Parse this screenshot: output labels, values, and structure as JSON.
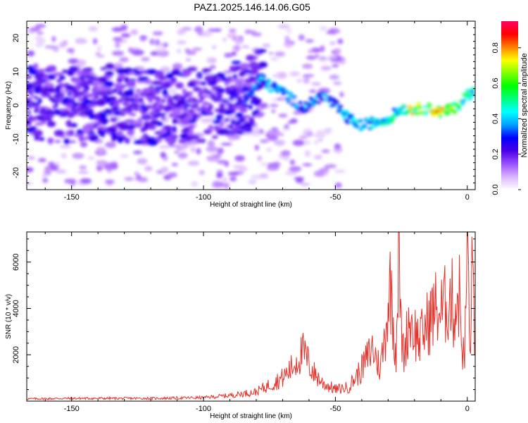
{
  "title": "PAZ1.2025.146.14.06.G05",
  "chart_data": [
    {
      "type": "heatmap",
      "xlabel": "Height of straight line (km)",
      "ylabel": "Frequency (Hz)",
      "xlim": [
        -167,
        3
      ],
      "ylim": [
        -25,
        25
      ],
      "xticks": [
        -150,
        -100,
        -50,
        0
      ],
      "yticks": [
        -20,
        -10,
        0,
        10,
        20
      ],
      "colorbar": {
        "label": "Normalized spectral amplitude",
        "range": [
          0,
          0.95
        ],
        "ticks": [
          "0.0",
          "0.2",
          "0.4",
          "0.6",
          "0.8"
        ],
        "tick_values": [
          0,
          0.2,
          0.4,
          0.6,
          0.8
        ],
        "colors": [
          "#ffffff",
          "#d9b3ff",
          "#9a50ff",
          "#4b00e6",
          "#0000ff",
          "#00a0ff",
          "#00ffff",
          "#00ff80",
          "#00ff00",
          "#80ff00",
          "#ffff00",
          "#ff8000",
          "#ff0000",
          "#ff0066"
        ]
      },
      "ridge": {
        "x": [
          -165,
          -150,
          -135,
          -120,
          -105,
          -95,
          -85,
          -78,
          -70,
          -62,
          -55,
          -50,
          -45,
          -40,
          -35,
          -30,
          -25,
          -20,
          -15,
          -10,
          -5,
          0,
          3
        ],
        "frequency": [
          1,
          0,
          1,
          -1,
          0,
          1,
          2,
          7,
          4,
          -1,
          3,
          0,
          -4,
          -6,
          -5,
          -4,
          -1,
          -1,
          -1,
          -2,
          -1,
          3,
          4
        ],
        "amplitude": [
          0.25,
          0.25,
          0.25,
          0.22,
          0.22,
          0.25,
          0.3,
          0.45,
          0.4,
          0.4,
          0.4,
          0.4,
          0.45,
          0.5,
          0.45,
          0.5,
          0.6,
          0.8,
          0.75,
          0.85,
          0.7,
          0.6,
          0.6
        ]
      },
      "grid": false
    },
    {
      "type": "line",
      "xlabel": "Height of straight line (km)",
      "ylabel": "SNR (10 * v/v)",
      "xlim": [
        -167,
        3
      ],
      "ylim": [
        0,
        7300
      ],
      "xticks": [
        -150,
        -100,
        -50,
        0
      ],
      "yticks": [
        2000,
        4000,
        6000
      ],
      "series": [
        {
          "color": "#e8312a",
          "x": [
            -167,
            -150,
            -120,
            -100,
            -90,
            -80,
            -75,
            -70,
            -66,
            -64,
            -62,
            -60,
            -58,
            -55,
            -50,
            -45,
            -40,
            -36,
            -33,
            -31,
            -30,
            -29,
            -28,
            -27,
            -26,
            -25,
            -24,
            -22,
            -20,
            -18,
            -15,
            -12,
            -10,
            -8,
            -6,
            -5,
            -4,
            -3,
            -2,
            -1,
            0,
            1,
            2,
            3
          ],
          "y": [
            100,
            120,
            120,
            150,
            250,
            400,
            700,
            1000,
            1500,
            1900,
            2100,
            1600,
            1200,
            800,
            500,
            600,
            1400,
            2300,
            1400,
            3000,
            4300,
            5000,
            3400,
            2000,
            6800,
            2800,
            2000,
            3600,
            3000,
            2600,
            3400,
            4000,
            3800,
            4200,
            4500,
            3700,
            4400,
            4600,
            2500,
            1600,
            7300,
            2000,
            6100,
            2400
          ]
        }
      ],
      "grid": false
    }
  ]
}
